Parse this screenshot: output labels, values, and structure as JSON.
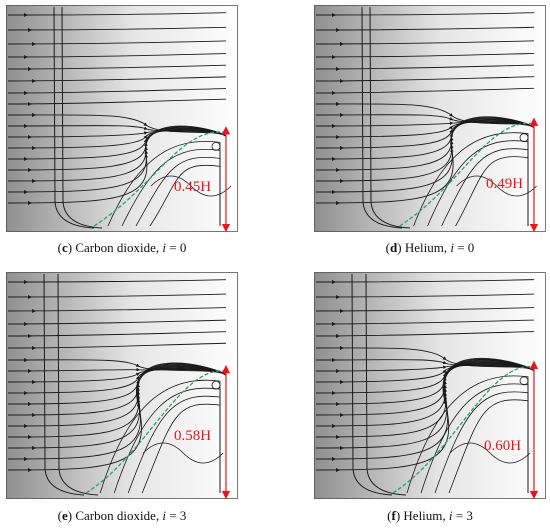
{
  "panels": [
    {
      "id": "c",
      "letter": "c",
      "label_rest": " Carbon dioxide, ",
      "var": "i",
      "eq": " = 0",
      "height_label": "0.45H",
      "height_fraction": 0.45
    },
    {
      "id": "d",
      "letter": "d",
      "label_rest": " Helium, ",
      "var": "i",
      "eq": " = 0",
      "height_label": "0.49H",
      "height_fraction": 0.49
    },
    {
      "id": "e",
      "letter": "e",
      "label_rest": " Carbon dioxide, ",
      "var": "i",
      "eq": " = 3",
      "height_label": "0.58H",
      "height_fraction": 0.58
    },
    {
      "id": "f",
      "letter": "f",
      "label_rest": " Helium, ",
      "var": "i",
      "eq": " = 3",
      "height_label": "0.60H",
      "height_fraction": 0.6
    }
  ],
  "colors": {
    "streamline": "#1a1a1a",
    "separation_line": "#2e9e6a",
    "annotation": "#e8161b",
    "background_dark": "#8f8f8f",
    "background_light": "#ffffff"
  }
}
